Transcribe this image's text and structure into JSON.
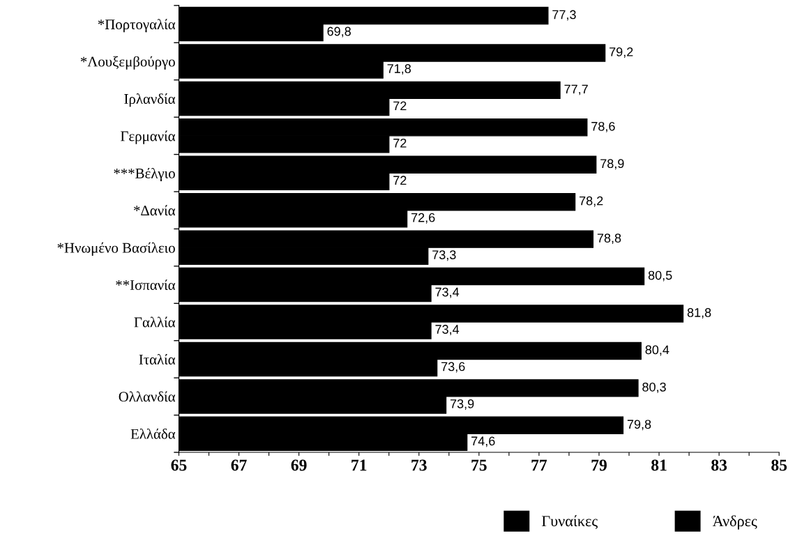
{
  "chart_data": {
    "type": "bar",
    "orientation": "horizontal",
    "categories": [
      "*Πορτογαλία",
      "*Λουξεμβούργο",
      "Ιρλανδία",
      "Γερμανία",
      "***Βέλγιο",
      "*Δανία",
      "*Ηνωμένο Βασίλειο",
      "**Ισπανία",
      "Γαλλία",
      "Ιταλία",
      "Ολλανδία",
      "Ελλάδα"
    ],
    "series": [
      {
        "name": "Γυναίκες",
        "color": "#000000",
        "values": [
          77.3,
          79.2,
          77.7,
          78.6,
          78.9,
          78.2,
          78.8,
          80.5,
          81.8,
          80.4,
          80.3,
          79.8
        ],
        "value_labels": [
          "77,3",
          "79,2",
          "77,7",
          "78,6",
          "78,9",
          "78,2",
          "78,8",
          "80,5",
          "81,8",
          "80,4",
          "80,3",
          "79,8"
        ]
      },
      {
        "name": "Άνδρες",
        "color": "#000000",
        "values": [
          69.8,
          71.8,
          72,
          72,
          72,
          72.6,
          73.3,
          73.4,
          73.4,
          73.6,
          73.9,
          74.6
        ],
        "value_labels": [
          "69,8",
          "71,8",
          "72",
          "72",
          "72",
          "72,6",
          "73,3",
          "73,4",
          "73,4",
          "73,6",
          "73,9",
          "74,6"
        ]
      }
    ],
    "xlim": [
      65,
      85
    ],
    "xticks": [
      65,
      {
        "value": 66,
        "label": null
      },
      67,
      {
        "value": 68,
        "label": null
      },
      69,
      {
        "value": 70,
        "label": null
      },
      71,
      {
        "value": 72,
        "label": null
      },
      73,
      {
        "value": 74,
        "label": null
      },
      75,
      {
        "value": 76,
        "label": null
      },
      77,
      {
        "value": 78,
        "label": null
      },
      79,
      {
        "value": 80,
        "label": null
      },
      81,
      {
        "value": 82,
        "label": null
      },
      83,
      {
        "value": 84,
        "label": null
      },
      85
    ],
    "grid": false,
    "legend": "bottom right"
  }
}
